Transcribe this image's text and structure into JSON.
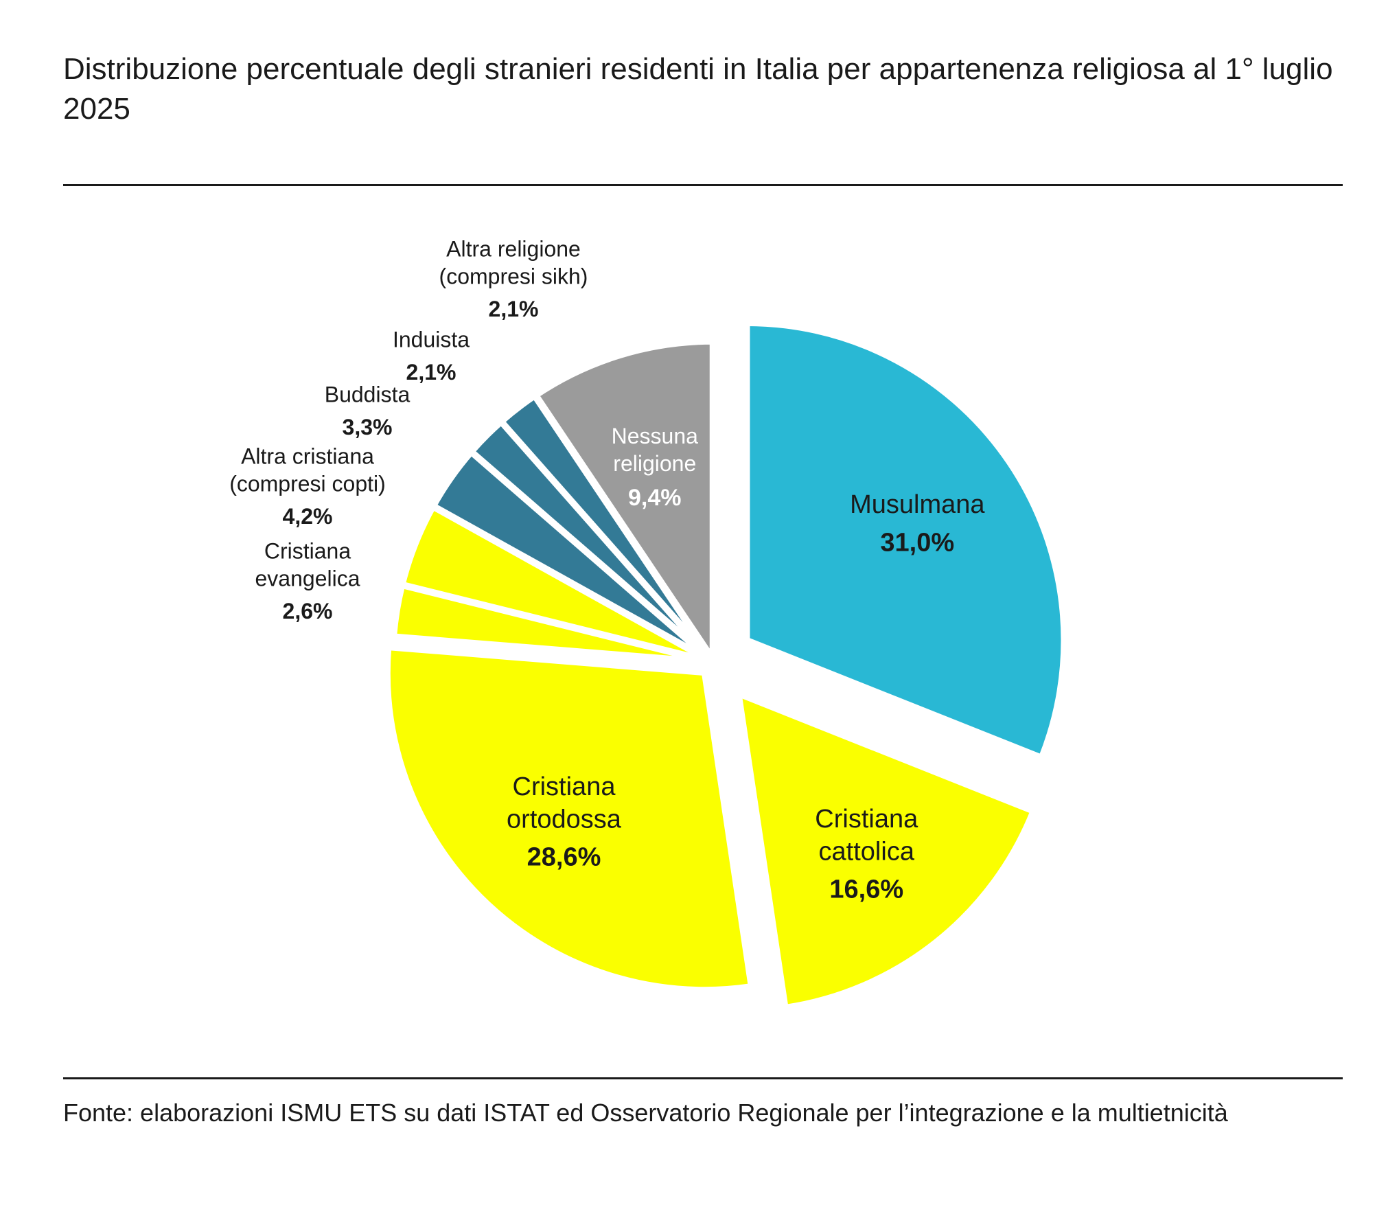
{
  "title": "Distribuzione percentuale degli stranieri residenti in Italia per appartenenza religiosa al 1° luglio 2025",
  "source": "Fonte: elaborazioni ISMU ETS su dati ISTAT ed Osservatorio Regionale per l’integrazione e la multietnicità",
  "chart_data": {
    "type": "pie",
    "title": "Distribuzione percentuale degli stranieri residenti in Italia per appartenenza religiosa al 1° luglio 2025",
    "unit": "%",
    "slices": [
      {
        "key": "musulmana",
        "name_lines": [
          "Musulmana"
        ],
        "value": 31.0,
        "value_label": "31,0%",
        "color": "#29b8d4",
        "text_color": "#1a1a1a"
      },
      {
        "key": "cattolica",
        "name_lines": [
          "Cristiana",
          "cattolica"
        ],
        "value": 16.6,
        "value_label": "16,6%",
        "color": "#faff00",
        "text_color": "#1a1a1a"
      },
      {
        "key": "ortodossa",
        "name_lines": [
          "Cristiana",
          "ortodossa"
        ],
        "value": 28.6,
        "value_label": "28,6%",
        "color": "#faff00",
        "text_color": "#1a1a1a"
      },
      {
        "key": "evangelica",
        "name_lines": [
          "Cristiana",
          "evangelica"
        ],
        "value": 2.6,
        "value_label": "2,6%",
        "color": "#faff00",
        "text_color": "#1a1a1a"
      },
      {
        "key": "altra-cristiana",
        "name_lines": [
          "Altra cristiana",
          "(compresi copti)"
        ],
        "value": 4.2,
        "value_label": "4,2%",
        "color": "#faff00",
        "text_color": "#1a1a1a"
      },
      {
        "key": "buddista",
        "name_lines": [
          "Buddista"
        ],
        "value": 3.3,
        "value_label": "3,3%",
        "color": "#337a96",
        "text_color": "#1a1a1a"
      },
      {
        "key": "induista",
        "name_lines": [
          "Induista"
        ],
        "value": 2.1,
        "value_label": "2,1%",
        "color": "#337a96",
        "text_color": "#1a1a1a"
      },
      {
        "key": "altra-religione",
        "name_lines": [
          "Altra religione",
          "(compresi sikh)"
        ],
        "value": 2.1,
        "value_label": "2,1%",
        "color": "#337a96",
        "text_color": "#1a1a1a"
      },
      {
        "key": "nessuna",
        "name_lines": [
          "Nessuna",
          "religione"
        ],
        "value": 9.4,
        "value_label": "9,4%",
        "color": "#9b9b9b",
        "text_color": "#ffffff"
      }
    ]
  }
}
